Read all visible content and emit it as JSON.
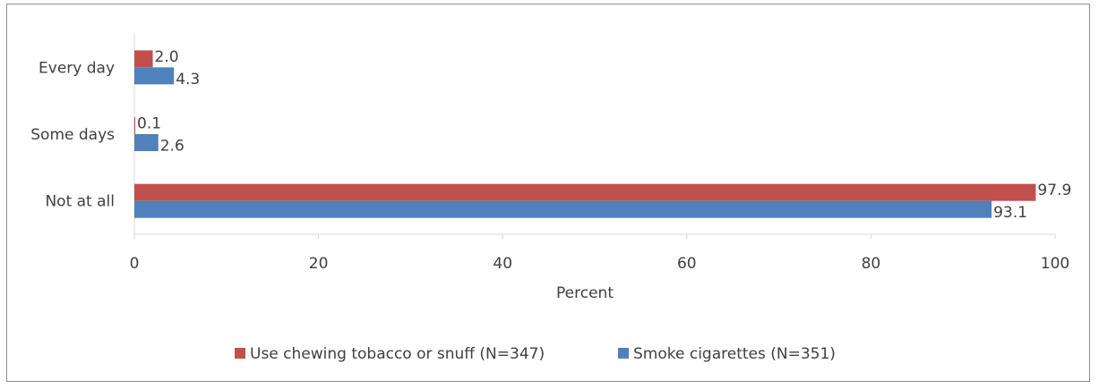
{
  "chart_data": {
    "type": "bar",
    "orientation": "horizontal",
    "categories": [
      "Every day",
      "Some days",
      "Not at all"
    ],
    "series": [
      {
        "name": "Use chewing tobacco or snuff (N=347)",
        "color": "#c0504d",
        "values": [
          2.0,
          0.1,
          97.9
        ],
        "labels": [
          "2.0",
          "0.1",
          "97.9"
        ]
      },
      {
        "name": "Smoke cigarettes (N=351)",
        "color": "#4f81bd",
        "values": [
          4.3,
          2.6,
          93.1
        ],
        "labels": [
          "4.3",
          "2.6",
          "93.1"
        ]
      }
    ],
    "xlabel": "Percent",
    "ylabel": "",
    "xlim": [
      0,
      100
    ],
    "xticks": [
      "0",
      "20",
      "40",
      "60",
      "80",
      "100"
    ],
    "grid": false,
    "legend_position": "bottom"
  }
}
